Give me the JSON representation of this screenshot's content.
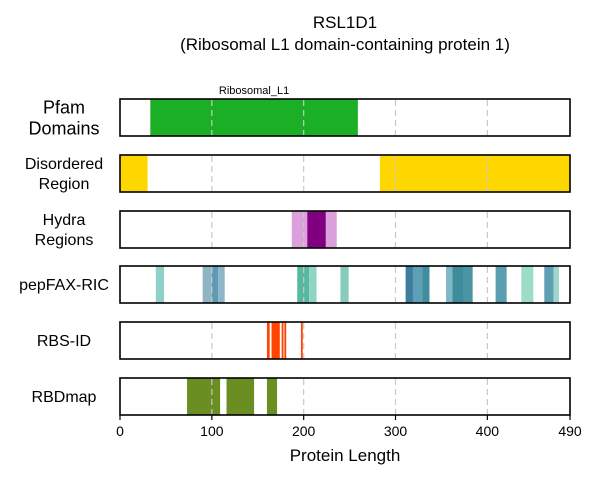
{
  "chart_data": {
    "type": "bar",
    "title": "RSL1D1",
    "subtitle": "(Ribosomal L1 domain-containing protein 1)",
    "xlabel": "Protein Length",
    "xlim": [
      0,
      490
    ],
    "xticks": [
      0,
      100,
      200,
      300,
      400,
      490
    ],
    "grid": true,
    "tracks": [
      {
        "label": "Pfam\nDomains",
        "segments": [
          {
            "start": 33,
            "end": 259,
            "color": "#1aaf24",
            "label": "Ribosomal_L1"
          }
        ]
      },
      {
        "label": "Disordered\nRegion",
        "segments": [
          {
            "start": 0,
            "end": 30,
            "color": "#ffd700"
          },
          {
            "start": 283,
            "end": 490,
            "color": "#ffd700"
          }
        ]
      },
      {
        "label": "Hydra\nRegions",
        "segments": [
          {
            "start": 187,
            "end": 236,
            "color": "#dca0dc"
          },
          {
            "start": 204,
            "end": 224,
            "color": "#800080"
          }
        ]
      },
      {
        "label": "pepFAX-RIC",
        "segments": [
          {
            "start": 39,
            "end": 48,
            "color": "#8fd0c8"
          },
          {
            "start": 90,
            "end": 100,
            "color": "#90b4c4"
          },
          {
            "start": 100,
            "end": 107,
            "color": "#5e9ab4"
          },
          {
            "start": 107,
            "end": 114,
            "color": "#8fb6c8"
          },
          {
            "start": 193,
            "end": 206,
            "color": "#56b8a0"
          },
          {
            "start": 206,
            "end": 214,
            "color": "#8fd4c4"
          },
          {
            "start": 240,
            "end": 249,
            "color": "#86ccbc"
          },
          {
            "start": 311,
            "end": 319,
            "color": "#3e7d9e"
          },
          {
            "start": 319,
            "end": 329,
            "color": "#5c9fb7"
          },
          {
            "start": 329,
            "end": 337,
            "color": "#3f8e9e"
          },
          {
            "start": 355,
            "end": 362,
            "color": "#7fb8c8"
          },
          {
            "start": 362,
            "end": 374,
            "color": "#3e8c9c"
          },
          {
            "start": 374,
            "end": 384,
            "color": "#4a95a4"
          },
          {
            "start": 409,
            "end": 421,
            "color": "#5a9fb0"
          },
          {
            "start": 437,
            "end": 450,
            "color": "#9cdcc8"
          },
          {
            "start": 462,
            "end": 472,
            "color": "#5e9fb5"
          },
          {
            "start": 472,
            "end": 478,
            "color": "#9ed8cc"
          }
        ]
      },
      {
        "label": "RBS-ID",
        "segments": [
          {
            "start": 160,
            "end": 163,
            "color": "#ff4500"
          },
          {
            "start": 165,
            "end": 174,
            "color": "#ff4500"
          },
          {
            "start": 176,
            "end": 178,
            "color": "#ff4500"
          },
          {
            "start": 179,
            "end": 181,
            "color": "#ff4500"
          },
          {
            "start": 197,
            "end": 199,
            "color": "#ff4500"
          }
        ]
      },
      {
        "label": "RBDmap",
        "segments": [
          {
            "start": 73,
            "end": 109,
            "color": "#6b8e23"
          },
          {
            "start": 116,
            "end": 146,
            "color": "#6b8e23"
          },
          {
            "start": 160,
            "end": 171,
            "color": "#6b8e23"
          }
        ]
      }
    ]
  }
}
